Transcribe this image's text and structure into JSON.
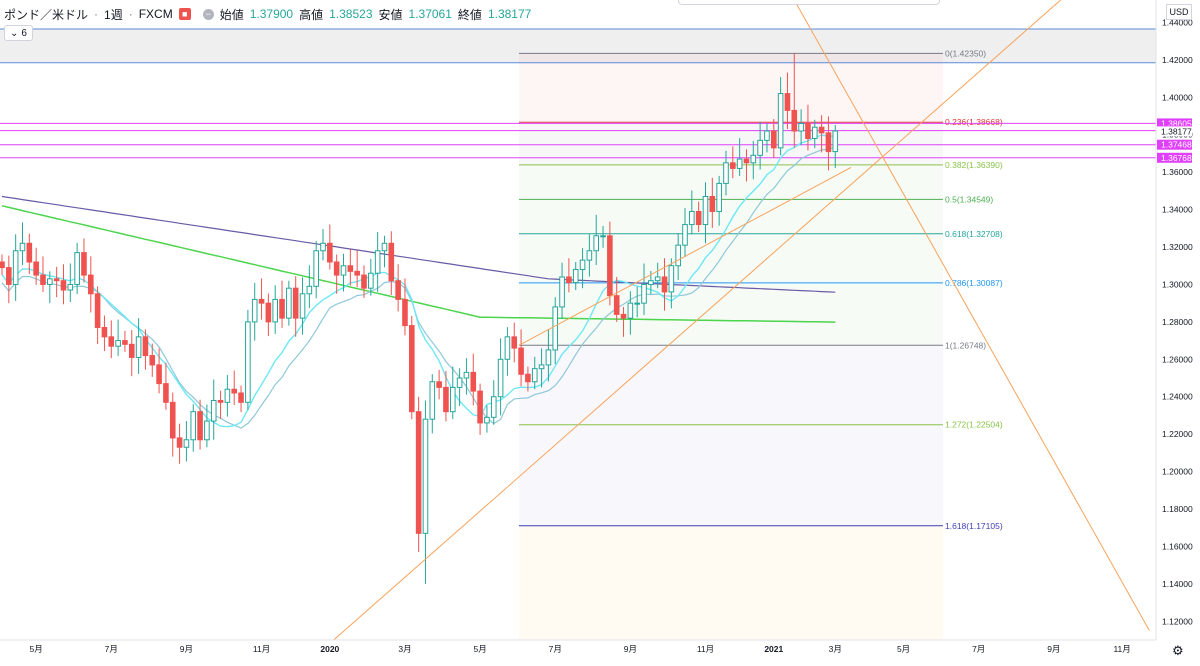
{
  "legend": {
    "symbol": "ポンド／米ドル",
    "interval": "1週",
    "broker": "FXCM",
    "open_label": "始値",
    "open_value": "1.37900",
    "high_label": "高値",
    "high_value": "1.38523",
    "low_label": "安値",
    "low_value": "1.37061",
    "close_label": "終値",
    "close_value": "1.38177"
  },
  "indicator_toggle": {
    "label": "6"
  },
  "currency": "USD",
  "colors": {
    "up": "#26a69a",
    "down": "#ef5350",
    "fib_trend": "#f7a35c",
    "ma_purple": "#6a5aa6",
    "ma_green": "#4cd44c",
    "ma_cyan1": "#6ee8f5",
    "ma_cyan2": "#8fc8d8",
    "hline_magenta": "#e040fb",
    "hline_blue": "#5b8bd9"
  },
  "chart_data": {
    "type": "candlestick",
    "ylim": [
      1.11,
      1.452
    ],
    "y_ticks": [
      "1.44000",
      "1.42000",
      "1.40000",
      "1.38000",
      "1.36000",
      "1.34000",
      "1.32000",
      "1.30000",
      "1.28000",
      "1.26000",
      "1.24000",
      "1.22000",
      "1.20000",
      "1.18000",
      "1.16000",
      "1.14000",
      "1.12000"
    ],
    "price_labels": [
      {
        "text": "1.38605",
        "value": 1.38605,
        "color": "#e040fb"
      },
      {
        "text": "1.38221",
        "value": 1.38221,
        "color": "#e040fb"
      },
      {
        "text": "1.38177",
        "value": 1.38177,
        "color": "#ffffff"
      },
      {
        "text": "1.37468",
        "value": 1.37468,
        "color": "#e040fb"
      },
      {
        "text": "1.36768",
        "value": 1.36768,
        "color": "#e040fb"
      }
    ],
    "x_ticks": [
      {
        "label": "5月",
        "week": 5
      },
      {
        "label": "7月",
        "week": 16
      },
      {
        "label": "9月",
        "week": 27
      },
      {
        "label": "11月",
        "week": 38
      },
      {
        "label": "2020",
        "week": 48
      },
      {
        "label": "3月",
        "week": 59
      },
      {
        "label": "5月",
        "week": 70
      },
      {
        "label": "7月",
        "week": 81
      },
      {
        "label": "9月",
        "week": 92
      },
      {
        "label": "11月",
        "week": 103
      },
      {
        "label": "2021",
        "week": 113
      },
      {
        "label": "3月",
        "week": 122
      },
      {
        "label": "5月",
        "week": 132
      },
      {
        "label": "7月",
        "week": 143
      },
      {
        "label": "9月",
        "week": 154
      },
      {
        "label": "11月",
        "week": 164
      }
    ],
    "fibonacci_levels": [
      {
        "label": "0(1.42350)",
        "value": 1.4235,
        "color": "#787b86"
      },
      {
        "label": "0.236(1.38668)",
        "value": 1.38668,
        "color": "#e53935"
      },
      {
        "label": "0.382(1.36390)",
        "value": 1.3639,
        "color": "#8bc34a"
      },
      {
        "label": "0.5(1.34549)",
        "value": 1.34549,
        "color": "#4caf50"
      },
      {
        "label": "0.618(1.32708)",
        "value": 1.32708,
        "color": "#26a69a"
      },
      {
        "label": "0.786(1.30087)",
        "value": 1.30087,
        "color": "#2196f3"
      },
      {
        "label": "1(1.26748)",
        "value": 1.26748,
        "color": "#787b86"
      },
      {
        "label": "1.272(1.22504)",
        "value": 1.22504,
        "color": "#8bc34a"
      },
      {
        "label": "1.618(1.17105)",
        "value": 1.17105,
        "color": "#3f3fb5"
      }
    ],
    "horizontal_zone": [
      1.4185,
      1.4365
    ],
    "horizontal_lines": [
      1.38605,
      1.38221,
      1.37468,
      1.36768
    ],
    "trendlines": [
      {
        "from": [
          47,
          1.105
        ],
        "to": [
          155,
          1.452
        ]
      },
      {
        "from": [
          116,
          1.452
        ],
        "to": [
          168,
          1.115
        ]
      }
    ],
    "candles_weekly_close": [
      1.309,
      1.3,
      1.318,
      1.322,
      1.312,
      1.305,
      1.3,
      1.303,
      1.302,
      1.297,
      1.3,
      1.317,
      1.305,
      1.295,
      1.277,
      1.272,
      1.267,
      1.27,
      1.268,
      1.261,
      1.272,
      1.262,
      1.257,
      1.247,
      1.237,
      1.218,
      1.213,
      1.217,
      1.232,
      1.217,
      1.227,
      1.238,
      1.237,
      1.244,
      1.242,
      1.237,
      1.28,
      1.292,
      1.29,
      1.28,
      1.292,
      1.282,
      1.298,
      1.282,
      1.295,
      1.299,
      1.318,
      1.322,
      1.312,
      1.305,
      1.31,
      1.307,
      1.305,
      1.298,
      1.306,
      1.318,
      1.322,
      1.302,
      1.292,
      1.278,
      1.232,
      1.167,
      1.228,
      1.248,
      1.245,
      1.232,
      1.245,
      1.25,
      1.253,
      1.243,
      1.226,
      1.229,
      1.24,
      1.26,
      1.272,
      1.266,
      1.252,
      1.248,
      1.255,
      1.257,
      1.265,
      1.288,
      1.304,
      1.301,
      1.308,
      1.313,
      1.318,
      1.326,
      1.326,
      1.294,
      1.284,
      1.282,
      1.29,
      1.29,
      1.3,
      1.302,
      1.304,
      1.296,
      1.31,
      1.321,
      1.332,
      1.339,
      1.332,
      1.347,
      1.339,
      1.354,
      1.365,
      1.362,
      1.367,
      1.365,
      1.369,
      1.377,
      1.382,
      1.373,
      1.402,
      1.393,
      1.382,
      1.386,
      1.378,
      1.384,
      1.381,
      1.371,
      1.382
    ]
  }
}
